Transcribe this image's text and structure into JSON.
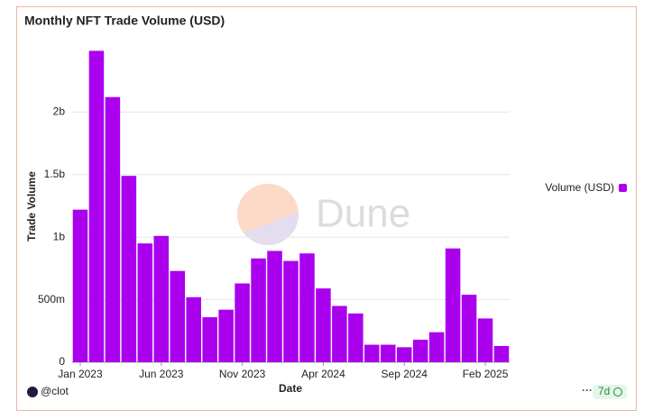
{
  "chart_data": {
    "type": "bar",
    "title": "Monthly NFT Trade Volume (USD)",
    "x_label": "Date",
    "y_label": "Trade Volume",
    "watermark": "Dune",
    "author": "@clot",
    "badge": "7d",
    "categories": [
      "Jan 2023",
      null,
      null,
      null,
      null,
      "Jun 2023",
      null,
      null,
      null,
      null,
      "Nov 2023",
      null,
      null,
      null,
      null,
      "Apr 2024",
      null,
      null,
      null,
      null,
      "Sep 2024",
      null,
      null,
      null,
      null,
      "Feb 2025",
      null
    ],
    "series": [
      {
        "name": "Volume (USD)",
        "color": "#aa00ee",
        "values": [
          1220000000,
          2490000000,
          2120000000,
          1490000000,
          950000000,
          1010000000,
          730000000,
          520000000,
          360000000,
          420000000,
          630000000,
          830000000,
          890000000,
          810000000,
          870000000,
          590000000,
          450000000,
          390000000,
          140000000,
          140000000,
          120000000,
          180000000,
          240000000,
          910000000,
          540000000,
          350000000,
          130000000
        ]
      }
    ],
    "ylim": [
      0,
      2500000000
    ],
    "yticks": [
      0,
      {
        "value": 500000000,
        "label": "500m"
      },
      {
        "value": 1000000000,
        "label": "1b"
      },
      {
        "value": 1500000000,
        "label": "1.5b"
      },
      {
        "value": 2000000000,
        "label": "2b"
      }
    ],
    "grid": true,
    "legend": "right"
  }
}
